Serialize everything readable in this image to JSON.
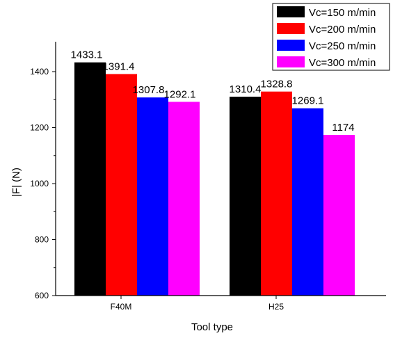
{
  "chart_data": {
    "type": "bar",
    "title": "",
    "xlabel": "Tool type",
    "ylabel": "|F| (N)",
    "categories": [
      "F40M",
      "H25"
    ],
    "series": [
      {
        "name": "Vc=150 m/min",
        "color": "#000000",
        "values": [
          1433.1,
          1310.4
        ],
        "labels": [
          "1433.1",
          "1310.4"
        ]
      },
      {
        "name": "Vc=200 m/min",
        "color": "#ff0000",
        "values": [
          1391.4,
          1328.8
        ],
        "labels": [
          "1391.4",
          "1328.8"
        ]
      },
      {
        "name": "Vc=250 m/min",
        "color": "#0000ff",
        "values": [
          1307.8,
          1269.1
        ],
        "labels": [
          "1307.8",
          "1269.1"
        ]
      },
      {
        "name": "Vc=300 m/min",
        "color": "#ff00ff",
        "values": [
          1292.1,
          1174
        ],
        "labels": [
          "1292.1",
          "1174"
        ]
      }
    ],
    "ylim": [
      600,
      1500
    ],
    "yticks": [
      600,
      800,
      1000,
      1200,
      1400
    ],
    "legend_position": "top-right",
    "grid": false
  }
}
